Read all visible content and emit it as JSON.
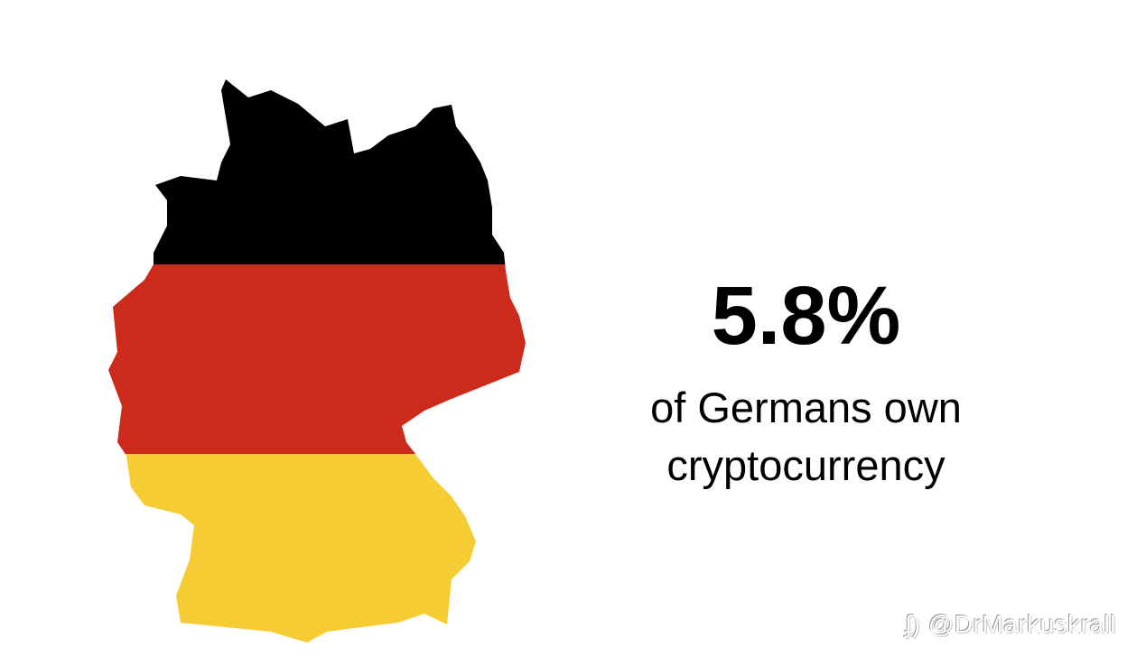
{
  "infographic": {
    "statistic": "5.8%",
    "caption_line1": "of Germans own",
    "caption_line2": "cryptocurrency"
  },
  "map": {
    "country": "Germany",
    "flag_colors": [
      "#000000",
      "#cc2a1b",
      "#f6cc35"
    ]
  },
  "watermark": {
    "icon": "weibo-like-icon",
    "text": "@DrMarkuskrall"
  }
}
